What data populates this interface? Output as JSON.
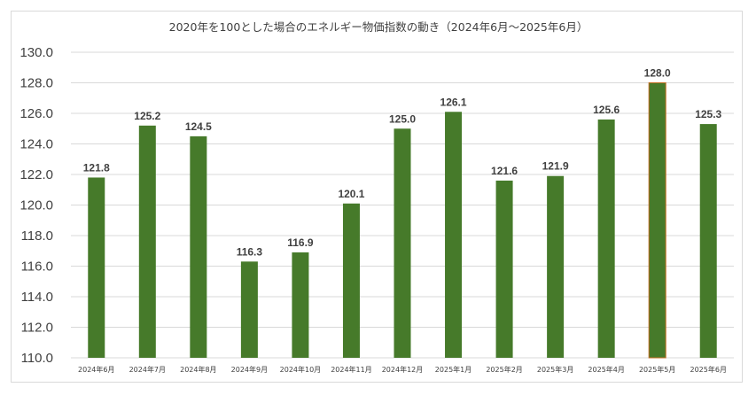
{
  "chart_data": {
    "type": "bar",
    "title": "2020年を100とした場合のエネルギー物価指数の動き（2024年6月～2025年6月）",
    "categories": [
      "2024年6月",
      "2024年7月",
      "2024年8月",
      "2024年9月",
      "2024年10月",
      "2024年11月",
      "2024年12月",
      "2025年1月",
      "2025年2月",
      "2025年3月",
      "2025年4月",
      "2025年5月",
      "2025年6月"
    ],
    "values": [
      121.8,
      125.2,
      124.5,
      116.3,
      116.9,
      120.1,
      125.0,
      126.1,
      121.6,
      121.9,
      125.6,
      128.0,
      125.3
    ],
    "data_labels": [
      "121.8",
      "125.2",
      "124.5",
      "116.3",
      "116.9",
      "120.1",
      "125.0",
      "126.1",
      "121.6",
      "121.9",
      "125.6",
      "128.0",
      "125.3"
    ],
    "y_ticks": [
      "110.0",
      "112.0",
      "114.0",
      "116.0",
      "118.0",
      "120.0",
      "122.0",
      "124.0",
      "126.0",
      "128.0",
      "130.0"
    ],
    "ylim": [
      110,
      130
    ],
    "y_step": 2,
    "grid": true,
    "legend": "none",
    "bar_color": "#467a2a",
    "highlight_index": 11,
    "highlight_border": "#c06a1c"
  }
}
